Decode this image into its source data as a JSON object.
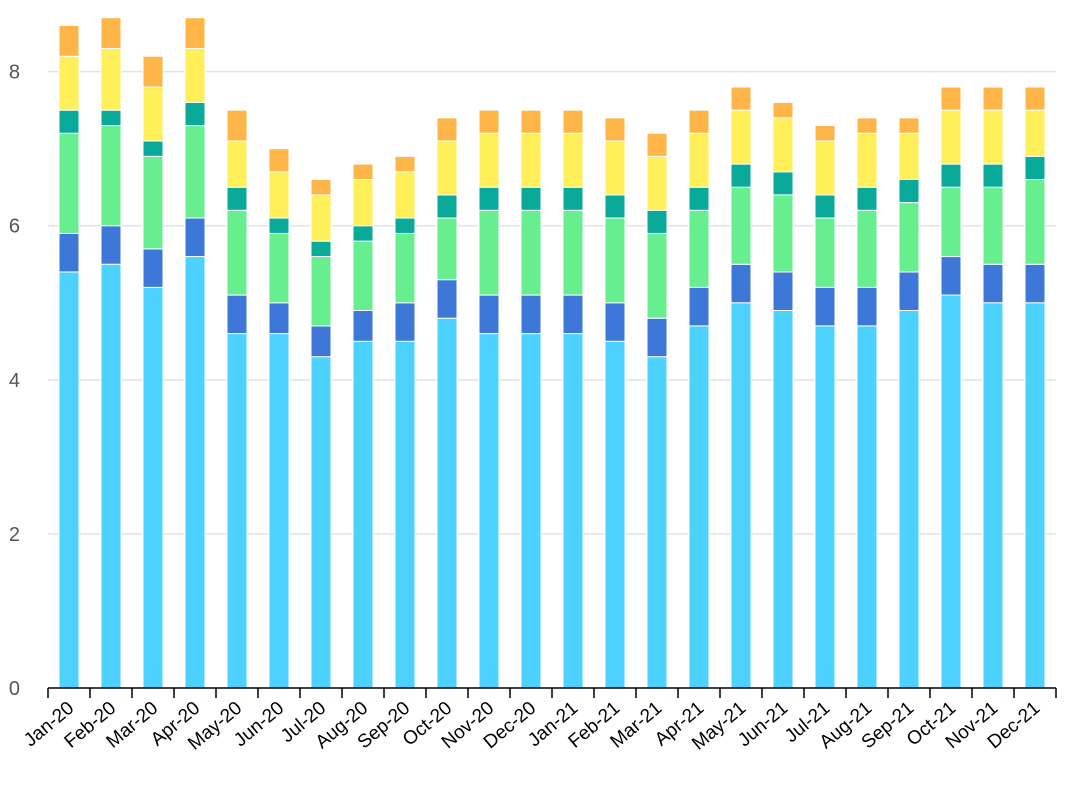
{
  "chart_data": {
    "type": "bar",
    "stacked": true,
    "categories": [
      "Jan-20",
      "Feb-20",
      "Mar-20",
      "Apr-20",
      "May-20",
      "Jun-20",
      "Jul-20",
      "Aug-20",
      "Sep-20",
      "Oct-20",
      "Nov-20",
      "Dec-20",
      "Jan-21",
      "Feb-21",
      "Mar-21",
      "Apr-21",
      "May-21",
      "Jun-21",
      "Jul-21",
      "Aug-21",
      "Sep-21",
      "Oct-21",
      "Nov-21",
      "Dec-21"
    ],
    "series": [
      {
        "color": "#4dd2ff",
        "values": [
          5.4,
          5.5,
          5.2,
          5.6,
          4.6,
          4.6,
          4.3,
          4.5,
          4.5,
          4.8,
          4.6,
          4.6,
          4.6,
          4.5,
          4.3,
          4.7,
          5.0,
          4.9,
          4.7,
          4.7,
          4.9,
          5.1,
          5.0,
          5.0
        ]
      },
      {
        "color": "#3d78d8",
        "values": [
          0.5,
          0.5,
          0.5,
          0.5,
          0.5,
          0.4,
          0.4,
          0.4,
          0.5,
          0.5,
          0.5,
          0.5,
          0.5,
          0.5,
          0.5,
          0.5,
          0.5,
          0.5,
          0.5,
          0.5,
          0.5,
          0.5,
          0.5,
          0.5
        ]
      },
      {
        "color": "#66ee8f",
        "values": [
          1.3,
          1.3,
          1.2,
          1.2,
          1.1,
          0.9,
          0.9,
          0.9,
          0.9,
          0.8,
          1.1,
          1.1,
          1.1,
          1.1,
          1.1,
          1.0,
          1.0,
          1.0,
          0.9,
          1.0,
          0.9,
          0.9,
          1.0,
          1.1
        ]
      },
      {
        "color": "#0aaa9a",
        "values": [
          0.3,
          0.2,
          0.2,
          0.3,
          0.3,
          0.2,
          0.2,
          0.2,
          0.2,
          0.3,
          0.3,
          0.3,
          0.3,
          0.3,
          0.3,
          0.3,
          0.3,
          0.3,
          0.3,
          0.3,
          0.3,
          0.3,
          0.3,
          0.3
        ]
      },
      {
        "color": "#fff05a",
        "values": [
          0.7,
          0.8,
          0.7,
          0.7,
          0.6,
          0.6,
          0.6,
          0.6,
          0.6,
          0.7,
          0.7,
          0.7,
          0.7,
          0.7,
          0.7,
          0.7,
          0.7,
          0.7,
          0.7,
          0.7,
          0.6,
          0.7,
          0.7,
          0.6
        ]
      },
      {
        "color": "#ffb547",
        "values": [
          0.4,
          0.4,
          0.4,
          0.4,
          0.4,
          0.3,
          0.2,
          0.2,
          0.2,
          0.3,
          0.3,
          0.3,
          0.3,
          0.3,
          0.3,
          0.3,
          0.3,
          0.2,
          0.2,
          0.2,
          0.2,
          0.3,
          0.3,
          0.3
        ]
      }
    ],
    "ylim": [
      0,
      8.8
    ],
    "yticks": [
      0,
      2,
      4,
      6,
      8
    ],
    "grid": true,
    "legend": "none",
    "title": "",
    "xlabel": "",
    "ylabel": ""
  }
}
